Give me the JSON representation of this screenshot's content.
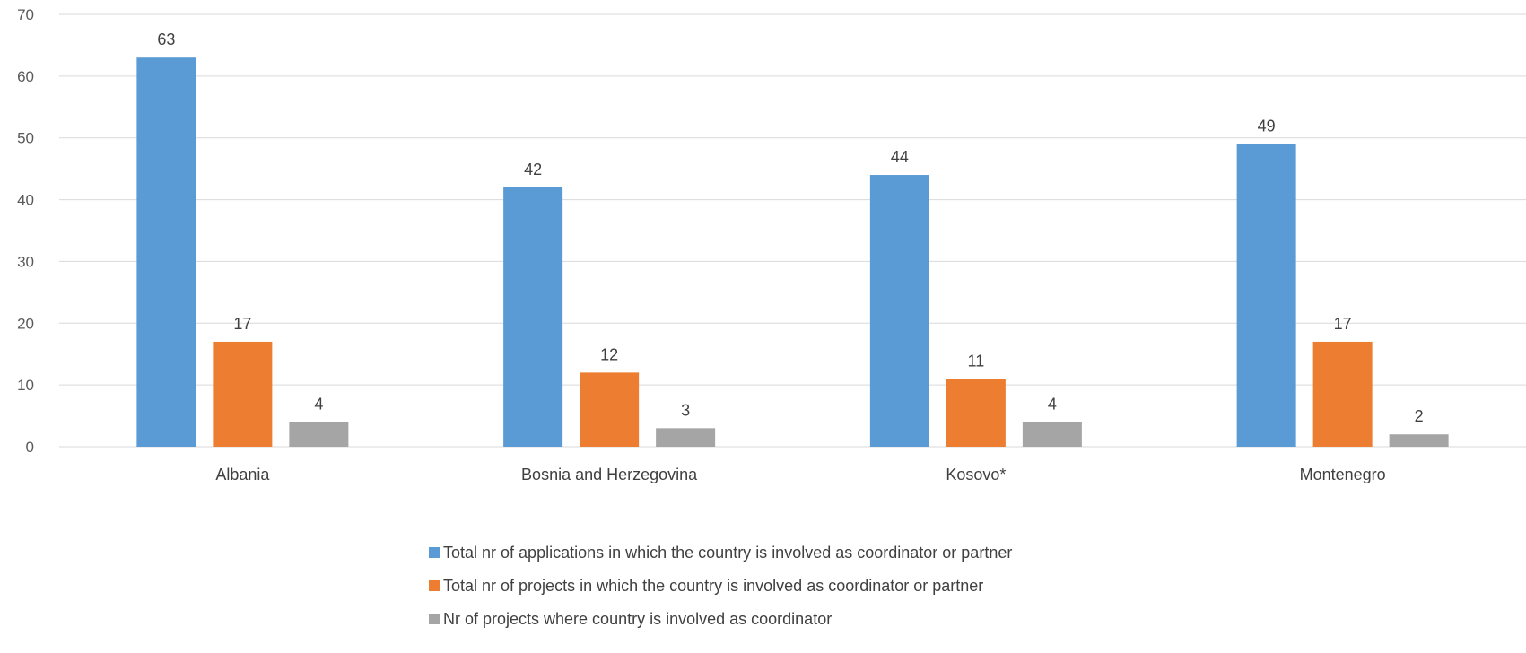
{
  "chart_data": {
    "type": "bar",
    "categories": [
      "Albania",
      "Bosnia and Herzegovina",
      "Kosovo*",
      "Montenegro"
    ],
    "series": [
      {
        "name": "Total nr of applications in which the country is involved as coordinator or partner",
        "color": "#5b9bd5",
        "values": [
          63,
          42,
          44,
          49
        ]
      },
      {
        "name": "Total nr of projects in which the country is involved as coordinator or partner",
        "color": "#ed7d31",
        "values": [
          17,
          12,
          11,
          17
        ]
      },
      {
        "name": "Nr of projects where country is involved as coordinator",
        "color": "#a5a5a5",
        "values": [
          4,
          3,
          4,
          2
        ]
      }
    ],
    "ylim": [
      0,
      70
    ],
    "yticks": [
      0,
      10,
      20,
      30,
      40,
      50,
      60,
      70
    ],
    "grid": true,
    "legend_position": "bottom",
    "data_labels": true
  }
}
